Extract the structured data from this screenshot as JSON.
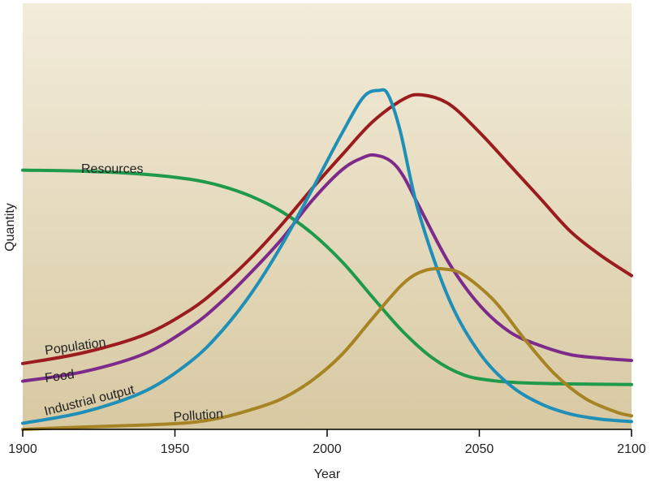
{
  "chart_data": {
    "type": "line",
    "xlabel": "Year",
    "ylabel": "Quantity",
    "xlim": [
      1900,
      2100
    ],
    "ylim": [
      0,
      100
    ],
    "xticks": [
      "1900",
      "1950",
      "2000",
      "2050",
      "2100"
    ],
    "grid": false,
    "background_gradient": [
      "#f2ecda",
      "#d8c9a2"
    ],
    "series": [
      {
        "name": "Resources",
        "color": "#1f9a4a",
        "x": [
          1900,
          1920,
          1940,
          1955,
          1965,
          1975,
          1985,
          1995,
          2005,
          2015,
          2025,
          2035,
          2045,
          2055,
          2065,
          2080,
          2100
        ],
        "y": [
          76.4,
          76.1,
          75.2,
          73.7,
          71.8,
          68.7,
          64.2,
          57.8,
          49.3,
          38.9,
          28.7,
          20.8,
          16.0,
          14.3,
          13.7,
          13.4,
          13.2
        ]
      },
      {
        "name": "Population",
        "color": "#9b1c1f",
        "x": [
          1900,
          1920,
          1940,
          1955,
          1965,
          1975,
          1985,
          1995,
          2005,
          2015,
          2025,
          2031,
          2040,
          2050,
          2060,
          2070,
          2080,
          2090,
          2100
        ],
        "y": [
          19.4,
          22.6,
          27.9,
          35.2,
          42.2,
          50.6,
          60.3,
          70.9,
          81.0,
          90.7,
          97.3,
          98.6,
          95.9,
          87.6,
          77.9,
          68.1,
          58.3,
          51.2,
          45.3
        ]
      },
      {
        "name": "Food",
        "color": "#7d2b8b",
        "x": [
          1900,
          1920,
          1940,
          1955,
          1965,
          1975,
          1985,
          1995,
          2005,
          2012,
          2016,
          2021,
          2025,
          2030,
          2040,
          2050,
          2060,
          2070,
          2080,
          2090,
          2100
        ],
        "y": [
          14.2,
          17.0,
          22.3,
          30.1,
          37.4,
          46.3,
          56.0,
          67.4,
          76.6,
          80.2,
          80.8,
          79.0,
          74.7,
          66.1,
          49.1,
          36.7,
          28.7,
          24.7,
          22.0,
          21.0,
          20.3
        ]
      },
      {
        "name": "Industrial output",
        "color": "#1f8fb8",
        "x": [
          1900,
          1920,
          1940,
          1955,
          1965,
          1975,
          1985,
          1995,
          2005,
          2012,
          2017,
          2020,
          2024,
          2030,
          2040,
          2050,
          2060,
          2070,
          2080,
          2090,
          2100
        ],
        "y": [
          1.8,
          5.1,
          11.2,
          19.9,
          28.6,
          40.0,
          54.2,
          70.6,
          87.5,
          98.0,
          99.9,
          98.7,
          88.0,
          64.3,
          38.5,
          22.6,
          13.1,
          7.6,
          4.5,
          3.0,
          2.3
        ]
      },
      {
        "name": "Pollution",
        "color": "#a68424",
        "x": [
          1900,
          1920,
          1940,
          1955,
          1965,
          1975,
          1985,
          1995,
          2005,
          2015,
          2025,
          2032,
          2039,
          2045,
          2055,
          2065,
          2075,
          2085,
          2095,
          2100
        ],
        "y": [
          0.0,
          0.7,
          1.3,
          2.0,
          3.4,
          5.8,
          9.0,
          14.4,
          22.2,
          32.8,
          43.0,
          46.8,
          47.2,
          45.4,
          37.8,
          26.4,
          16.1,
          9.0,
          5.1,
          4.0
        ]
      }
    ]
  }
}
